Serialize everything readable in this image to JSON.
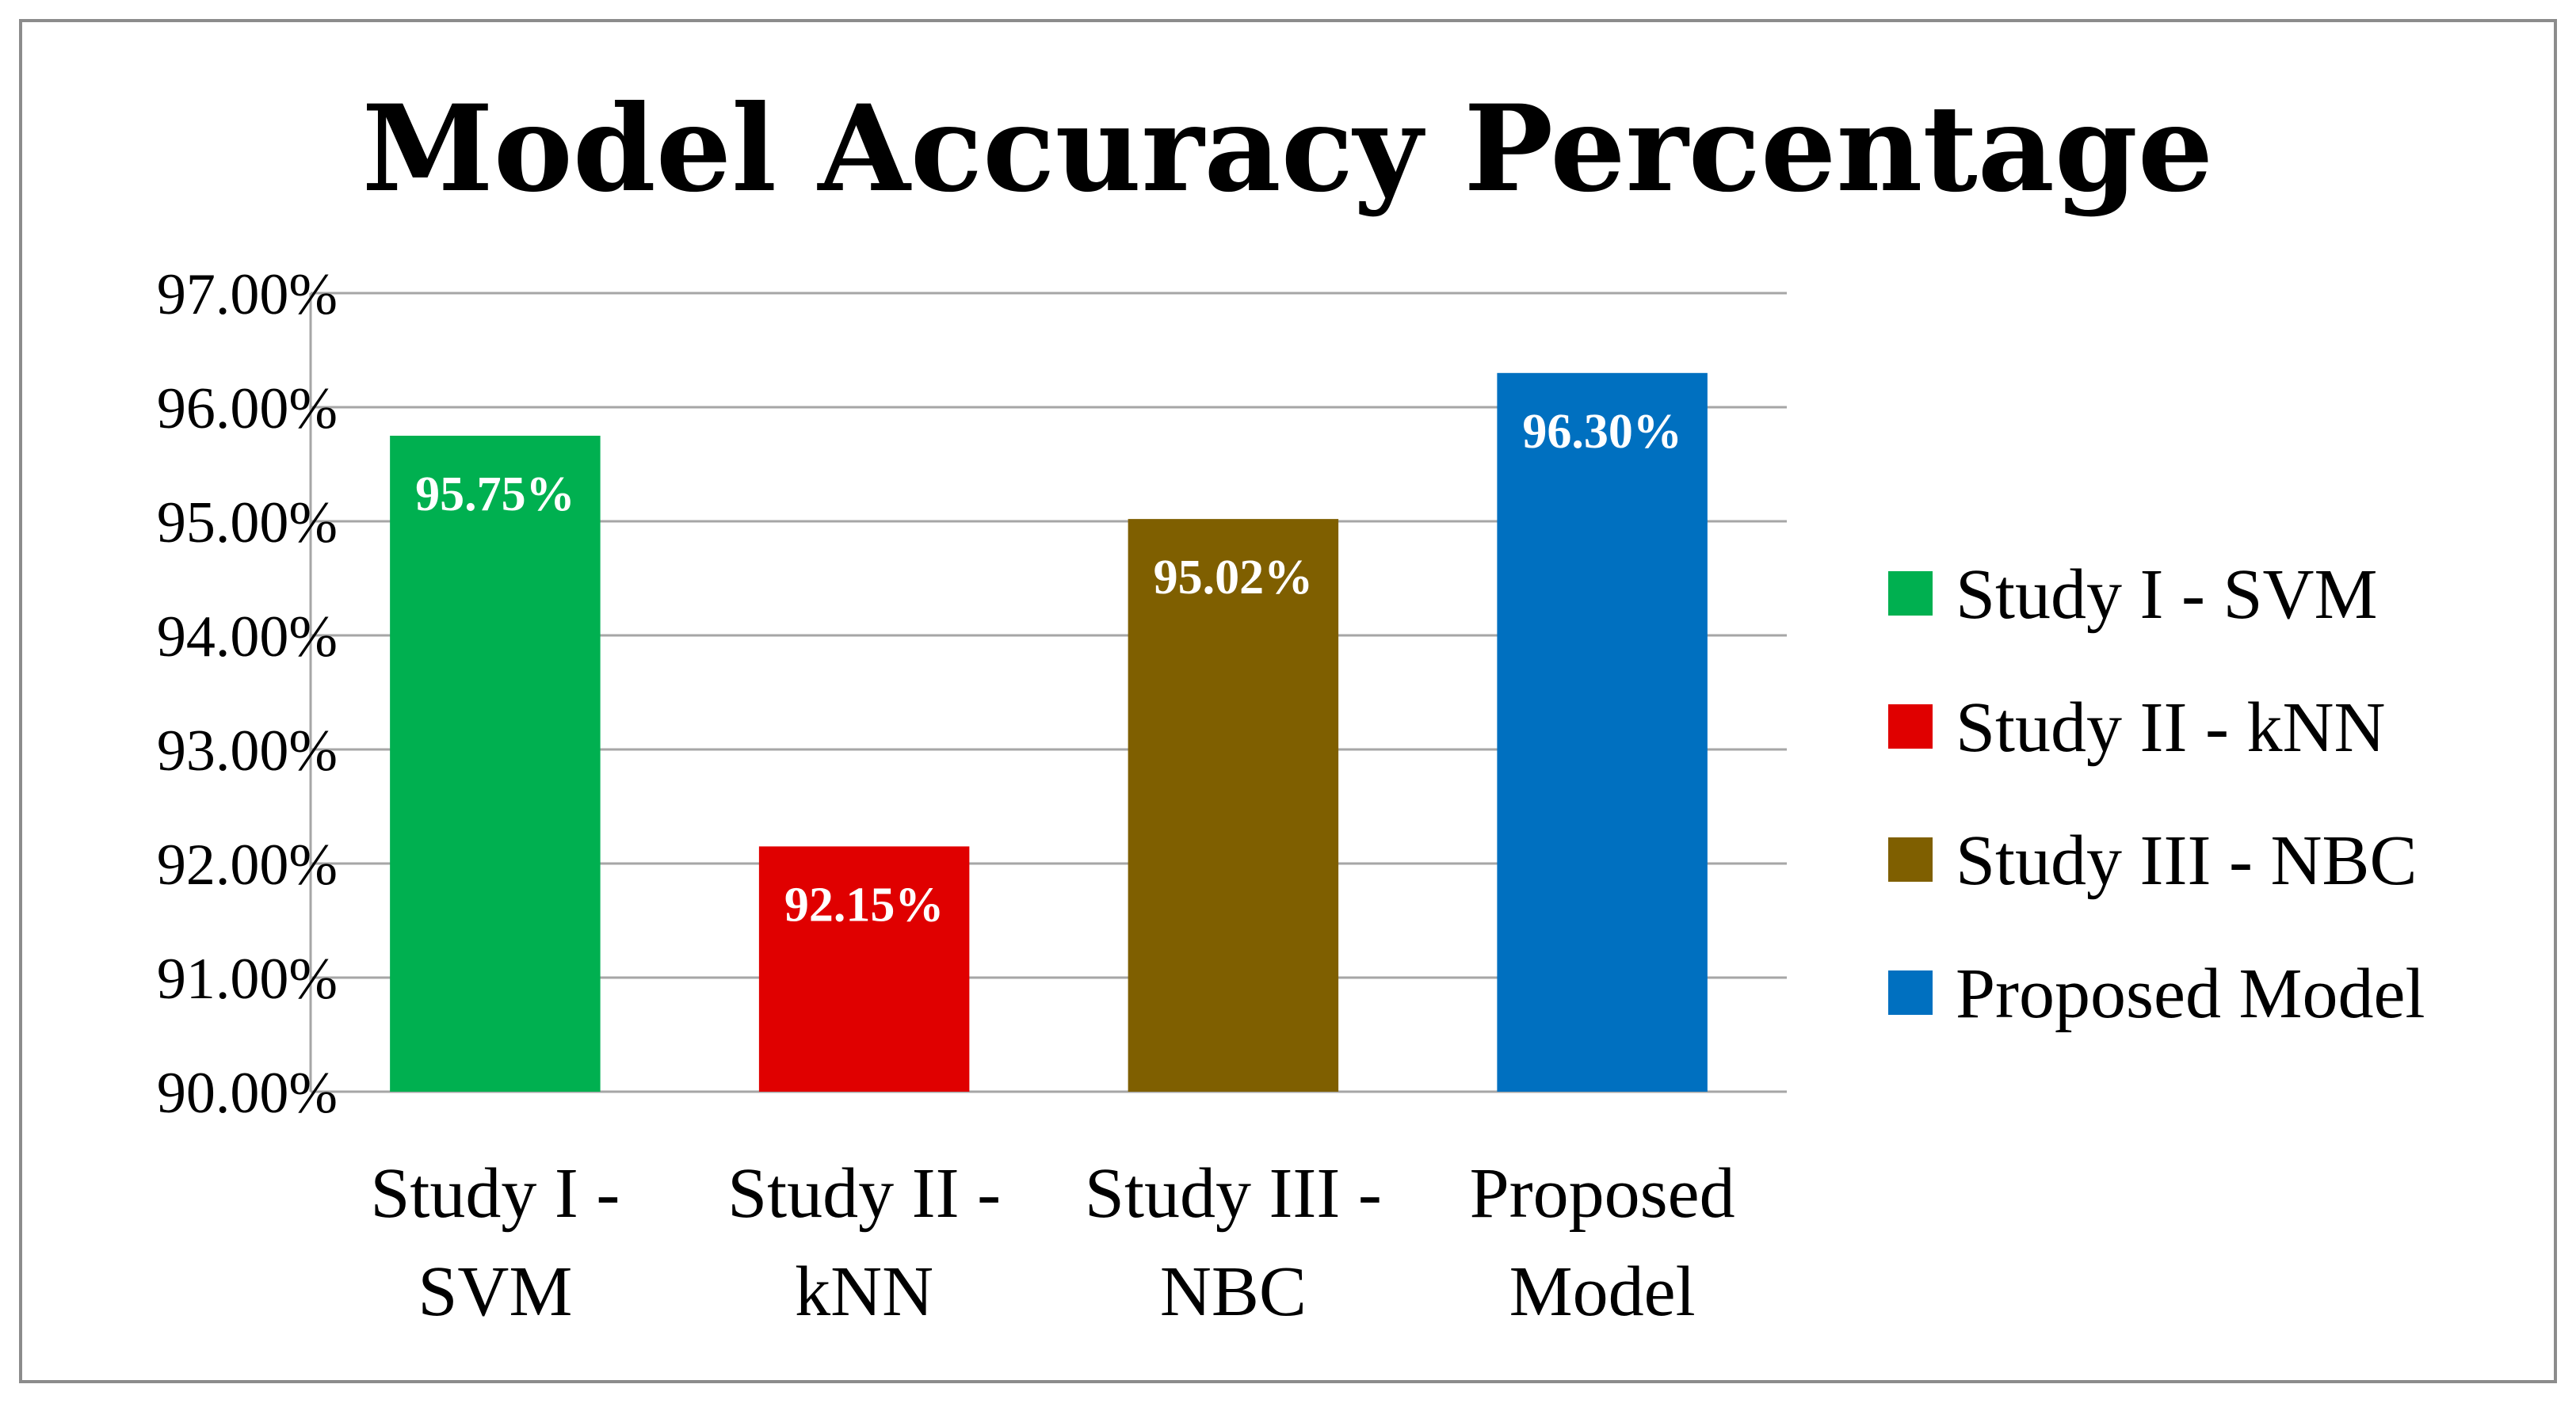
{
  "chart_data": {
    "type": "bar",
    "title": "Model Accuracy Percentage",
    "categories": [
      [
        "Study I -",
        "SVM"
      ],
      [
        "Study II -",
        "kNN"
      ],
      [
        "Study III -",
        "NBC"
      ],
      [
        "Proposed",
        "Model"
      ]
    ],
    "values": [
      95.75,
      92.15,
      95.02,
      96.3
    ],
    "data_labels": [
      "95.75%",
      "92.15%",
      "95.02%",
      "96.30%"
    ],
    "colors": [
      "#00b050",
      "#e00000",
      "#7f5f00",
      "#0070c0"
    ],
    "ylim": [
      90,
      97
    ],
    "yticks": [
      90,
      91,
      92,
      93,
      94,
      95,
      96,
      97
    ],
    "ytick_labels": [
      "90.00%",
      "91.00%",
      "92.00%",
      "93.00%",
      "94.00%",
      "95.00%",
      "96.00%",
      "97.00%"
    ],
    "grid": true,
    "legend_position": "right",
    "legend": [
      {
        "label": "Study I - SVM",
        "color": "#00b050"
      },
      {
        "label": "Study II - kNN",
        "color": "#e00000"
      },
      {
        "label": "Study III - NBC",
        "color": "#7f5f00"
      },
      {
        "label": "Proposed Model",
        "color": "#0070c0"
      }
    ],
    "xlabel": "",
    "ylabel": ""
  }
}
